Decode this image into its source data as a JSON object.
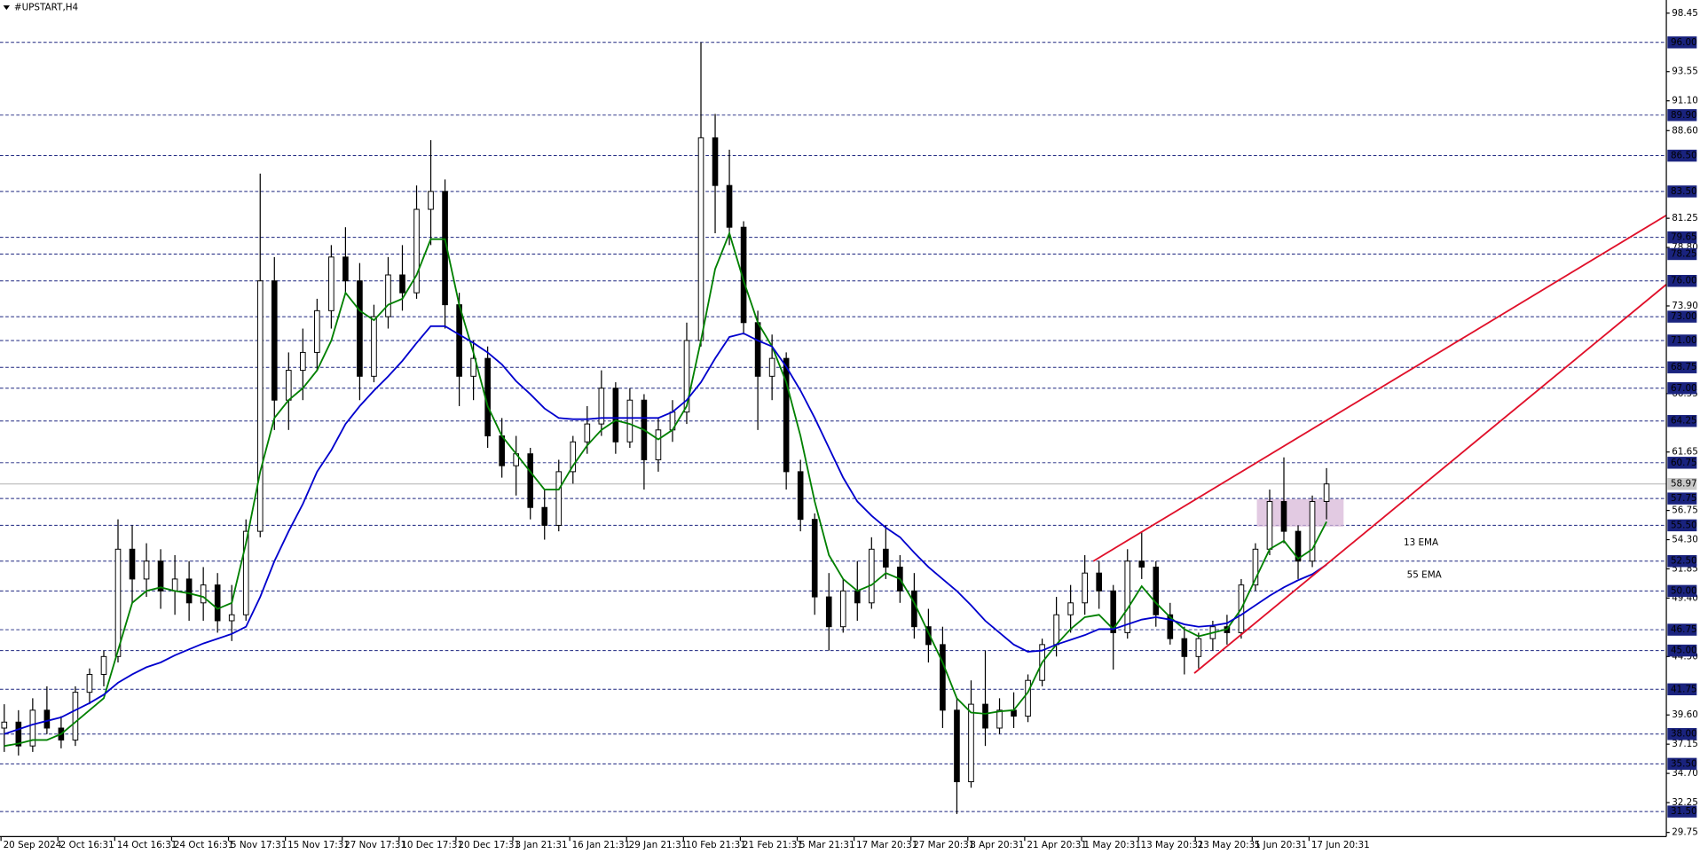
{
  "chart_data": {
    "type": "candlestick",
    "title": "#UPSTART,H4",
    "categories": [
      "20 Sep 2024",
      null,
      null,
      null,
      "2 Oct 16:31",
      null,
      null,
      null,
      "14 Oct 16:31",
      null,
      null,
      null,
      "24 Oct 16:31",
      null,
      null,
      null,
      "5 Nov 17:31",
      null,
      null,
      null,
      "15 Nov 17:31",
      null,
      null,
      null,
      "27 Nov 17:31",
      null,
      null,
      null,
      "10 Dec 17:31",
      null,
      null,
      null,
      "20 Dec 17:31",
      null,
      null,
      null,
      "3 Jan 21:31",
      null,
      null,
      null,
      "16 Jan 21:31",
      null,
      null,
      null,
      "29 Jan 21:31",
      null,
      null,
      null,
      "10 Feb 21:31",
      null,
      null,
      null,
      "21 Feb 21:31",
      null,
      null,
      null,
      "5 Mar 21:31",
      null,
      null,
      null,
      "17 Mar 20:31",
      null,
      null,
      null,
      "27 Mar 20:31",
      null,
      null,
      null,
      "8 Apr 20:31",
      null,
      null,
      null,
      "21 Apr 20:31",
      null,
      null,
      null,
      "1 May 20:31",
      null,
      null,
      null,
      "13 May 20:31",
      null,
      null,
      null,
      "23 May 20:31",
      null,
      null,
      null,
      "5 Jun 20:31",
      null,
      null,
      null,
      "17 Jun 20:31",
      null
    ],
    "ohlc": [
      [
        38.5,
        40.5,
        36.5,
        39.0
      ],
      [
        39.0,
        40.0,
        36.2,
        37.0
      ],
      [
        37.0,
        41.0,
        36.5,
        40.0
      ],
      [
        40.0,
        42.0,
        38.0,
        38.5
      ],
      [
        38.5,
        39.5,
        36.8,
        37.5
      ],
      [
        37.5,
        42.0,
        37.0,
        41.5
      ],
      [
        41.5,
        43.5,
        40.5,
        43.0
      ],
      [
        43.0,
        45.0,
        42.0,
        44.5
      ],
      [
        44.5,
        56.0,
        44.0,
        53.5
      ],
      [
        53.5,
        55.5,
        49.0,
        51.0
      ],
      [
        51.0,
        54.0,
        49.5,
        52.5
      ],
      [
        52.5,
        53.5,
        48.5,
        50.0
      ],
      [
        50.0,
        53.0,
        48.0,
        51.0
      ],
      [
        51.0,
        52.5,
        47.5,
        49.0
      ],
      [
        49.0,
        52.0,
        47.5,
        50.5
      ],
      [
        50.5,
        51.5,
        46.5,
        47.5
      ],
      [
        47.5,
        50.5,
        45.8,
        48.0
      ],
      [
        48.0,
        56.0,
        47.5,
        55.0
      ],
      [
        55.0,
        85.0,
        54.5,
        76.0
      ],
      [
        76.0,
        78.0,
        63.5,
        66.0
      ],
      [
        66.0,
        70.0,
        63.5,
        68.5
      ],
      [
        68.5,
        72.0,
        66.0,
        70.0
      ],
      [
        70.0,
        74.5,
        68.5,
        73.5
      ],
      [
        73.5,
        79.0,
        72.0,
        78.0
      ],
      [
        78.0,
        80.5,
        75.0,
        76.0
      ],
      [
        76.0,
        77.5,
        66.0,
        68.0
      ],
      [
        68.0,
        74.0,
        67.5,
        73.0
      ],
      [
        73.0,
        78.0,
        72.0,
        76.5
      ],
      [
        76.5,
        79.0,
        73.5,
        75.0
      ],
      [
        75.0,
        84.0,
        74.5,
        82.0
      ],
      [
        82.0,
        87.8,
        79.0,
        83.5
      ],
      [
        83.5,
        84.5,
        72.0,
        74.0
      ],
      [
        74.0,
        75.0,
        65.5,
        68.0
      ],
      [
        68.0,
        71.0,
        66.0,
        69.5
      ],
      [
        69.5,
        70.5,
        62.0,
        63.0
      ],
      [
        63.0,
        64.5,
        59.5,
        60.5
      ],
      [
        60.5,
        63.0,
        58.0,
        61.5
      ],
      [
        61.5,
        62.0,
        56.0,
        57.0
      ],
      [
        57.0,
        58.5,
        54.3,
        55.5
      ],
      [
        55.5,
        61.0,
        55.0,
        60.0
      ],
      [
        60.0,
        63.0,
        59.0,
        62.5
      ],
      [
        62.5,
        65.5,
        61.5,
        64.0
      ],
      [
        64.0,
        68.5,
        63.0,
        67.0
      ],
      [
        67.0,
        67.5,
        61.5,
        62.5
      ],
      [
        62.5,
        67.0,
        62.0,
        66.0
      ],
      [
        66.0,
        66.5,
        58.5,
        61.0
      ],
      [
        61.0,
        64.5,
        60.0,
        63.5
      ],
      [
        63.5,
        66.0,
        62.5,
        65.0
      ],
      [
        65.0,
        72.5,
        64.0,
        71.0
      ],
      [
        71.0,
        96.0,
        70.5,
        88.0
      ],
      [
        88.0,
        90.0,
        80.0,
        84.0
      ],
      [
        84.0,
        87.0,
        79.0,
        80.5
      ],
      [
        80.5,
        81.0,
        71.5,
        72.5
      ],
      [
        72.5,
        73.5,
        63.5,
        68.0
      ],
      [
        68.0,
        71.5,
        66.0,
        69.5
      ],
      [
        69.5,
        70.0,
        58.5,
        60.0
      ],
      [
        60.0,
        61.0,
        55.0,
        56.0
      ],
      [
        56.0,
        56.5,
        48.0,
        49.5
      ],
      [
        49.5,
        51.5,
        45.0,
        47.0
      ],
      [
        47.0,
        51.0,
        46.5,
        50.0
      ],
      [
        50.0,
        52.5,
        47.5,
        49.0
      ],
      [
        49.0,
        54.5,
        48.5,
        53.5
      ],
      [
        53.5,
        55.5,
        51.0,
        52.0
      ],
      [
        52.0,
        53.0,
        49.0,
        50.0
      ],
      [
        50.0,
        51.5,
        46.0,
        47.0
      ],
      [
        47.0,
        48.5,
        44.0,
        45.5
      ],
      [
        45.5,
        47.0,
        38.5,
        40.0
      ],
      [
        40.0,
        41.0,
        31.3,
        34.0
      ],
      [
        34.0,
        42.5,
        33.5,
        40.5
      ],
      [
        40.5,
        45.0,
        37.0,
        38.5
      ],
      [
        38.5,
        41.0,
        38.0,
        40.0
      ],
      [
        40.0,
        41.5,
        38.5,
        39.5
      ],
      [
        39.5,
        43.0,
        39.0,
        42.5
      ],
      [
        42.5,
        46.0,
        42.0,
        45.5
      ],
      [
        45.5,
        49.5,
        44.5,
        48.0
      ],
      [
        48.0,
        50.5,
        46.5,
        49.0
      ],
      [
        49.0,
        53.0,
        48.0,
        51.5
      ],
      [
        51.5,
        52.5,
        48.5,
        50.0
      ],
      [
        50.0,
        50.5,
        43.4,
        46.5
      ],
      [
        46.5,
        53.5,
        46.0,
        52.5
      ],
      [
        52.5,
        55.0,
        51.0,
        52.0
      ],
      [
        52.0,
        52.5,
        47.0,
        48.0
      ],
      [
        48.0,
        49.0,
        45.5,
        46.0
      ],
      [
        46.0,
        47.0,
        43.0,
        44.5
      ],
      [
        44.5,
        46.5,
        43.5,
        46.0
      ],
      [
        46.0,
        47.5,
        45.0,
        47.0
      ],
      [
        47.0,
        48.0,
        45.5,
        46.5
      ],
      [
        46.5,
        51.0,
        46.0,
        50.5
      ],
      [
        50.5,
        54.0,
        50.0,
        53.5
      ],
      [
        53.5,
        58.5,
        53.0,
        57.5
      ],
      [
        57.5,
        61.2,
        54.0,
        55.0
      ],
      [
        55.0,
        55.5,
        51.0,
        52.5
      ],
      [
        52.5,
        58.0,
        52.0,
        57.5
      ],
      [
        57.5,
        60.3,
        56.0,
        58.97
      ]
    ],
    "series": [
      {
        "name": "13 EMA",
        "color": "#008000",
        "values": [
          37,
          37.2,
          37.5,
          37.5,
          38,
          39,
          40,
          41,
          45,
          49,
          50,
          50.3,
          50,
          49.8,
          49.5,
          48.5,
          49,
          54,
          60,
          64.5,
          66,
          67,
          68.5,
          71,
          75,
          73.5,
          72.7,
          74,
          74.5,
          76.5,
          79.5,
          79.5,
          74,
          70,
          65.5,
          63,
          61.5,
          60,
          58.5,
          58.5,
          60.5,
          62.2,
          63.5,
          64.3,
          64,
          63.5,
          62.7,
          63.5,
          65.5,
          71,
          77,
          80,
          76,
          72.5,
          70.5,
          67.5,
          63,
          57.5,
          53,
          51,
          50,
          50.5,
          51.5,
          51,
          49,
          46.5,
          44,
          41,
          39.8,
          39.7,
          39.9,
          40,
          41.5,
          44,
          45.5,
          46.8,
          47.8,
          48,
          46.8,
          48.5,
          50.4,
          49,
          47.8,
          46.8,
          46.2,
          46.5,
          46.8,
          48.5,
          51,
          53.5,
          54.2,
          52.7,
          53.5,
          55.8
        ]
      },
      {
        "name": "55 EMA",
        "color": "#0000cd",
        "values": [
          38,
          38.4,
          38.8,
          39.1,
          39.4,
          40,
          40.6,
          41.3,
          42.3,
          43,
          43.6,
          44,
          44.6,
          45.1,
          45.6,
          46,
          46.4,
          47,
          49.5,
          52.5,
          55,
          57.3,
          60,
          61.8,
          64,
          65.5,
          66.8,
          68,
          69.3,
          70.8,
          72.2,
          72.2,
          71.5,
          70.8,
          70,
          69,
          67.6,
          66.5,
          65.3,
          64.5,
          64.4,
          64.4,
          64.5,
          64.5,
          64.5,
          64.5,
          64.5,
          65,
          66,
          67.5,
          69.5,
          71.3,
          71.6,
          71,
          70.5,
          68.8,
          66.8,
          64.5,
          62,
          59.5,
          57.5,
          56.3,
          55.3,
          54.5,
          53.2,
          52,
          51,
          50,
          48.8,
          47.5,
          46.5,
          45.5,
          44.9,
          45,
          45.5,
          45.9,
          46.3,
          46.8,
          46.8,
          47.2,
          47.6,
          47.8,
          47.6,
          47.2,
          47,
          47.1,
          47.3,
          48,
          48.8,
          49.6,
          50.3,
          50.9,
          51.4,
          52.2
        ]
      }
    ],
    "xlim": [
      -0.3,
      116.9
    ],
    "ylim": [
      29.4,
      99.55
    ],
    "yticks": [
      98.45,
      93.55,
      {
        "value": 91.1,
        "label": "91.10"
      },
      {
        "value": 88.6,
        "label": "88.60"
      },
      81.25,
      {
        "value": 78.8,
        "label": "78.80"
      },
      {
        "value": 73.9,
        "label": "73.90"
      },
      66.55,
      61.65,
      56.75,
      {
        "value": 54.3,
        "label": "54.30"
      },
      51.85,
      {
        "value": 49.4,
        "label": "49.40"
      },
      {
        "value": 44.5,
        "label": "44.50"
      },
      {
        "value": 39.6,
        "label": "39.60"
      },
      37.15,
      {
        "value": 34.7,
        "label": "34.70"
      },
      32.25,
      29.75
    ],
    "levels": [
      {
        "value": 96,
        "label": "96.00"
      },
      {
        "value": 89.9,
        "label": "89.90"
      },
      {
        "value": 86.5,
        "label": "86.50"
      },
      {
        "value": 83.5,
        "label": "83.50"
      },
      {
        "value": 79.65,
        "label": "79.65"
      },
      {
        "value": 78.25,
        "label": "78.25"
      },
      {
        "value": 76,
        "label": "76.00"
      },
      {
        "value": 73,
        "label": "73.00"
      },
      {
        "value": 71,
        "label": "71.00"
      },
      {
        "value": 68.75,
        "label": "68.75"
      },
      {
        "value": 67,
        "label": "67.00"
      },
      {
        "value": 64.25,
        "label": "64.25"
      },
      {
        "value": 60.75,
        "label": "60.75"
      },
      {
        "value": 57.75,
        "label": "57.75"
      },
      {
        "value": 55.5,
        "label": "55.50"
      },
      {
        "value": 52.5,
        "label": "52.50"
      },
      {
        "value": 50,
        "label": "50.00"
      },
      {
        "value": 46.75,
        "label": "46.75"
      },
      {
        "value": 45,
        "label": "45.00"
      },
      {
        "value": 41.75,
        "label": "41.75"
      },
      {
        "value": 38,
        "label": "38.00"
      },
      {
        "value": 35.5,
        "label": "35.50"
      },
      {
        "value": 31.5,
        "label": "31.50"
      }
    ],
    "level_color": "#1a237e",
    "last_price": 58.97,
    "trendlines": [
      {
        "x": [
          76.6,
          116.9
        ],
        "y": [
          52.5,
          81.5
        ]
      },
      {
        "x": [
          83.7,
          116.9
        ],
        "y": [
          43.1,
          75.7
        ]
      }
    ],
    "trendline_color": "#e0102a",
    "zone": {
      "x": [
        88.1,
        94.2
      ],
      "y": [
        55.4,
        57.7
      ],
      "color": "#d8b8d8"
    }
  }
}
